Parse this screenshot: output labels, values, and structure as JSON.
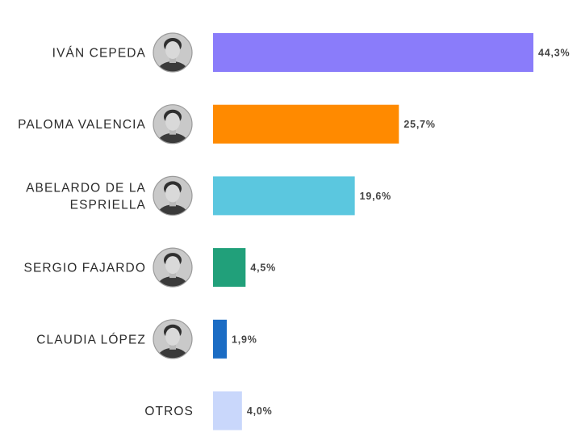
{
  "chart_data": {
    "type": "bar",
    "orientation": "horizontal",
    "title": "",
    "xlabel": "",
    "ylabel": "",
    "unit": "%",
    "xlim": [
      0,
      44.3
    ],
    "grid": false,
    "legend": "none",
    "categories": [
      {
        "name": "IVÁN CEPEDA",
        "lines": [
          "IVÁN CEPEDA"
        ],
        "value": 44.3,
        "value_label": "44,3%",
        "color": "#8a7cfa",
        "has_photo": true,
        "photo": "ivan-cepeda-photo"
      },
      {
        "name": "PALOMA VALENCIA",
        "lines": [
          "PALOMA VALENCIA"
        ],
        "value": 25.7,
        "value_label": "25,7%",
        "color": "#ff8a00",
        "has_photo": true,
        "photo": "paloma-valencia-photo"
      },
      {
        "name": "ABELARDO DE LA ESPRIELLA",
        "lines": [
          "ABELARDO DE LA",
          "ESPRIELLA"
        ],
        "value": 19.6,
        "value_label": "19,6%",
        "color": "#5bc7df",
        "has_photo": true,
        "photo": "abelardo-de-la-espriella-photo"
      },
      {
        "name": "SERGIO FAJARDO",
        "lines": [
          "SERGIO FAJARDO"
        ],
        "value": 4.5,
        "value_label": "4,5%",
        "color": "#21a07a",
        "has_photo": true,
        "photo": "sergio-fajardo-photo"
      },
      {
        "name": "CLAUDIA LÓPEZ",
        "lines": [
          "CLAUDIA LÓPEZ"
        ],
        "value": 1.9,
        "value_label": "1,9%",
        "color": "#1b6cc4",
        "has_photo": true,
        "photo": "claudia-lopez-photo"
      },
      {
        "name": "OTROS",
        "lines": [
          "OTROS"
        ],
        "value": 4.0,
        "value_label": "4,0%",
        "color": "#c9d7fb",
        "has_photo": false
      }
    ]
  }
}
